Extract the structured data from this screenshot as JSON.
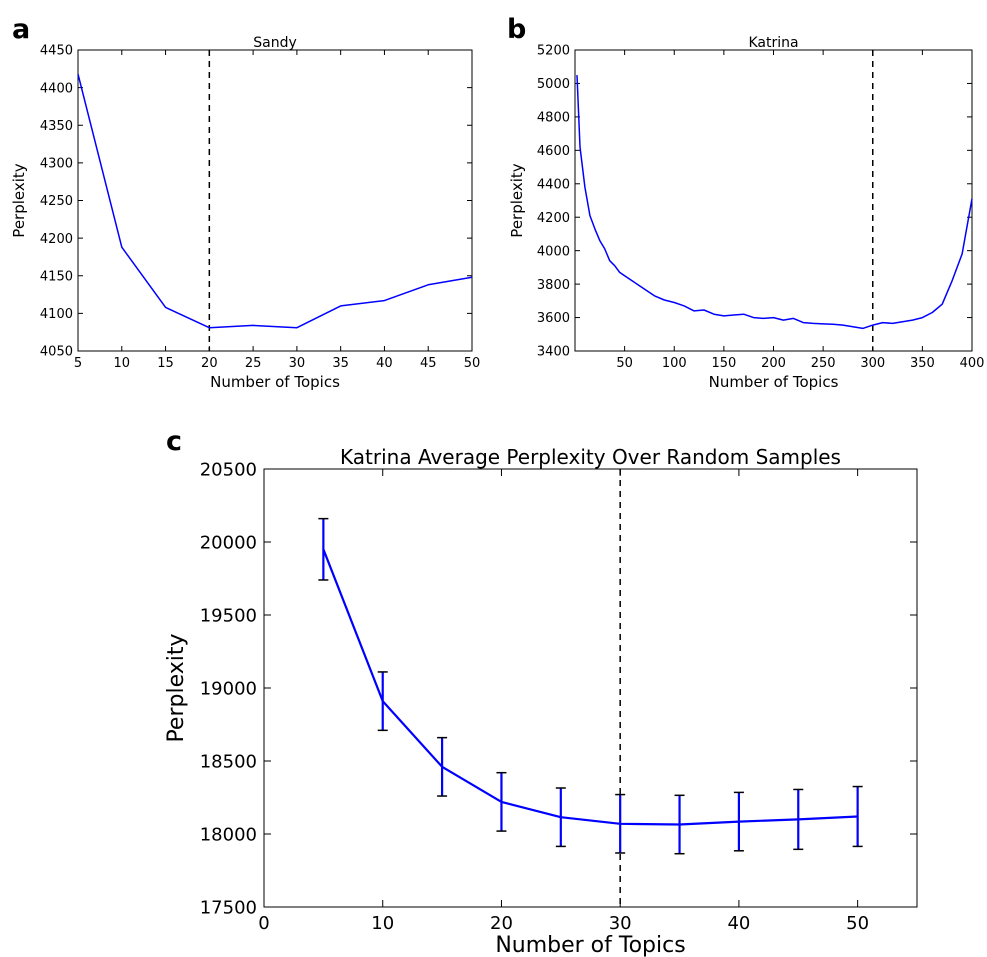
{
  "chart_data": [
    {
      "panel_label": "a",
      "type": "line",
      "title": "Sandy",
      "xlabel": "Number of Topics",
      "ylabel": "Perplexity",
      "xlim": [
        5,
        50
      ],
      "ylim": [
        4050,
        4450
      ],
      "x_ticks": [
        5,
        10,
        15,
        20,
        25,
        30,
        35,
        40,
        45,
        50
      ],
      "y_ticks": [
        4050,
        4100,
        4150,
        4200,
        4250,
        4300,
        4350,
        4400,
        4450
      ],
      "grid": false,
      "vline_x": 20,
      "series": [
        {
          "color": "#0000ff",
          "x": [
            5,
            10,
            15,
            20,
            25,
            30,
            35,
            40,
            45,
            50
          ],
          "y": [
            4418,
            4188,
            4108,
            4081,
            4084,
            4081,
            4110,
            4117,
            4138,
            4148
          ]
        }
      ]
    },
    {
      "panel_label": "b",
      "type": "line",
      "title": "Katrina",
      "xlabel": "Number of Topics",
      "ylabel": "Perplexity",
      "xlim": [
        0,
        400
      ],
      "ylim": [
        3400,
        5200
      ],
      "x_ticks": [
        50,
        100,
        150,
        200,
        250,
        300,
        350,
        400
      ],
      "y_ticks": [
        3400,
        3600,
        3800,
        4000,
        4200,
        4400,
        4600,
        4800,
        5000,
        5200
      ],
      "grid": false,
      "vline_x": 300,
      "series": [
        {
          "color": "#0000ff",
          "x": [
            2,
            5,
            10,
            15,
            20,
            25,
            30,
            35,
            40,
            45,
            50,
            60,
            70,
            80,
            90,
            100,
            110,
            120,
            130,
            140,
            150,
            160,
            170,
            180,
            190,
            200,
            210,
            220,
            230,
            240,
            250,
            260,
            270,
            280,
            290,
            300,
            310,
            320,
            330,
            340,
            350,
            360,
            370,
            380,
            390,
            400
          ],
          "y": [
            5050,
            4620,
            4380,
            4210,
            4130,
            4060,
            4010,
            3940,
            3910,
            3870,
            3850,
            3810,
            3770,
            3730,
            3705,
            3690,
            3670,
            3640,
            3645,
            3620,
            3610,
            3615,
            3620,
            3600,
            3595,
            3600,
            3585,
            3595,
            3570,
            3565,
            3562,
            3560,
            3555,
            3545,
            3535,
            3555,
            3570,
            3565,
            3575,
            3585,
            3600,
            3630,
            3680,
            3820,
            3980,
            4310
          ]
        }
      ]
    },
    {
      "panel_label": "c",
      "type": "line",
      "title": "Katrina Average Perplexity Over Random Samples",
      "xlabel": "Number of Topics",
      "ylabel": "Perplexity",
      "xlim": [
        0,
        55
      ],
      "ylim": [
        17500,
        20500
      ],
      "x_ticks": [
        0,
        10,
        20,
        30,
        40,
        50
      ],
      "y_ticks": [
        17500,
        18000,
        18500,
        19000,
        19500,
        20000,
        20500
      ],
      "grid": false,
      "vline_x": 30,
      "series": [
        {
          "color": "#0000ff",
          "x": [
            5,
            10,
            15,
            20,
            25,
            30,
            35,
            40,
            45,
            50
          ],
          "y": [
            19950,
            18910,
            18460,
            18220,
            18115,
            18070,
            18065,
            18085,
            18100,
            18120
          ],
          "error": [
            210,
            200,
            200,
            200,
            200,
            200,
            200,
            200,
            205,
            205
          ]
        }
      ]
    }
  ]
}
